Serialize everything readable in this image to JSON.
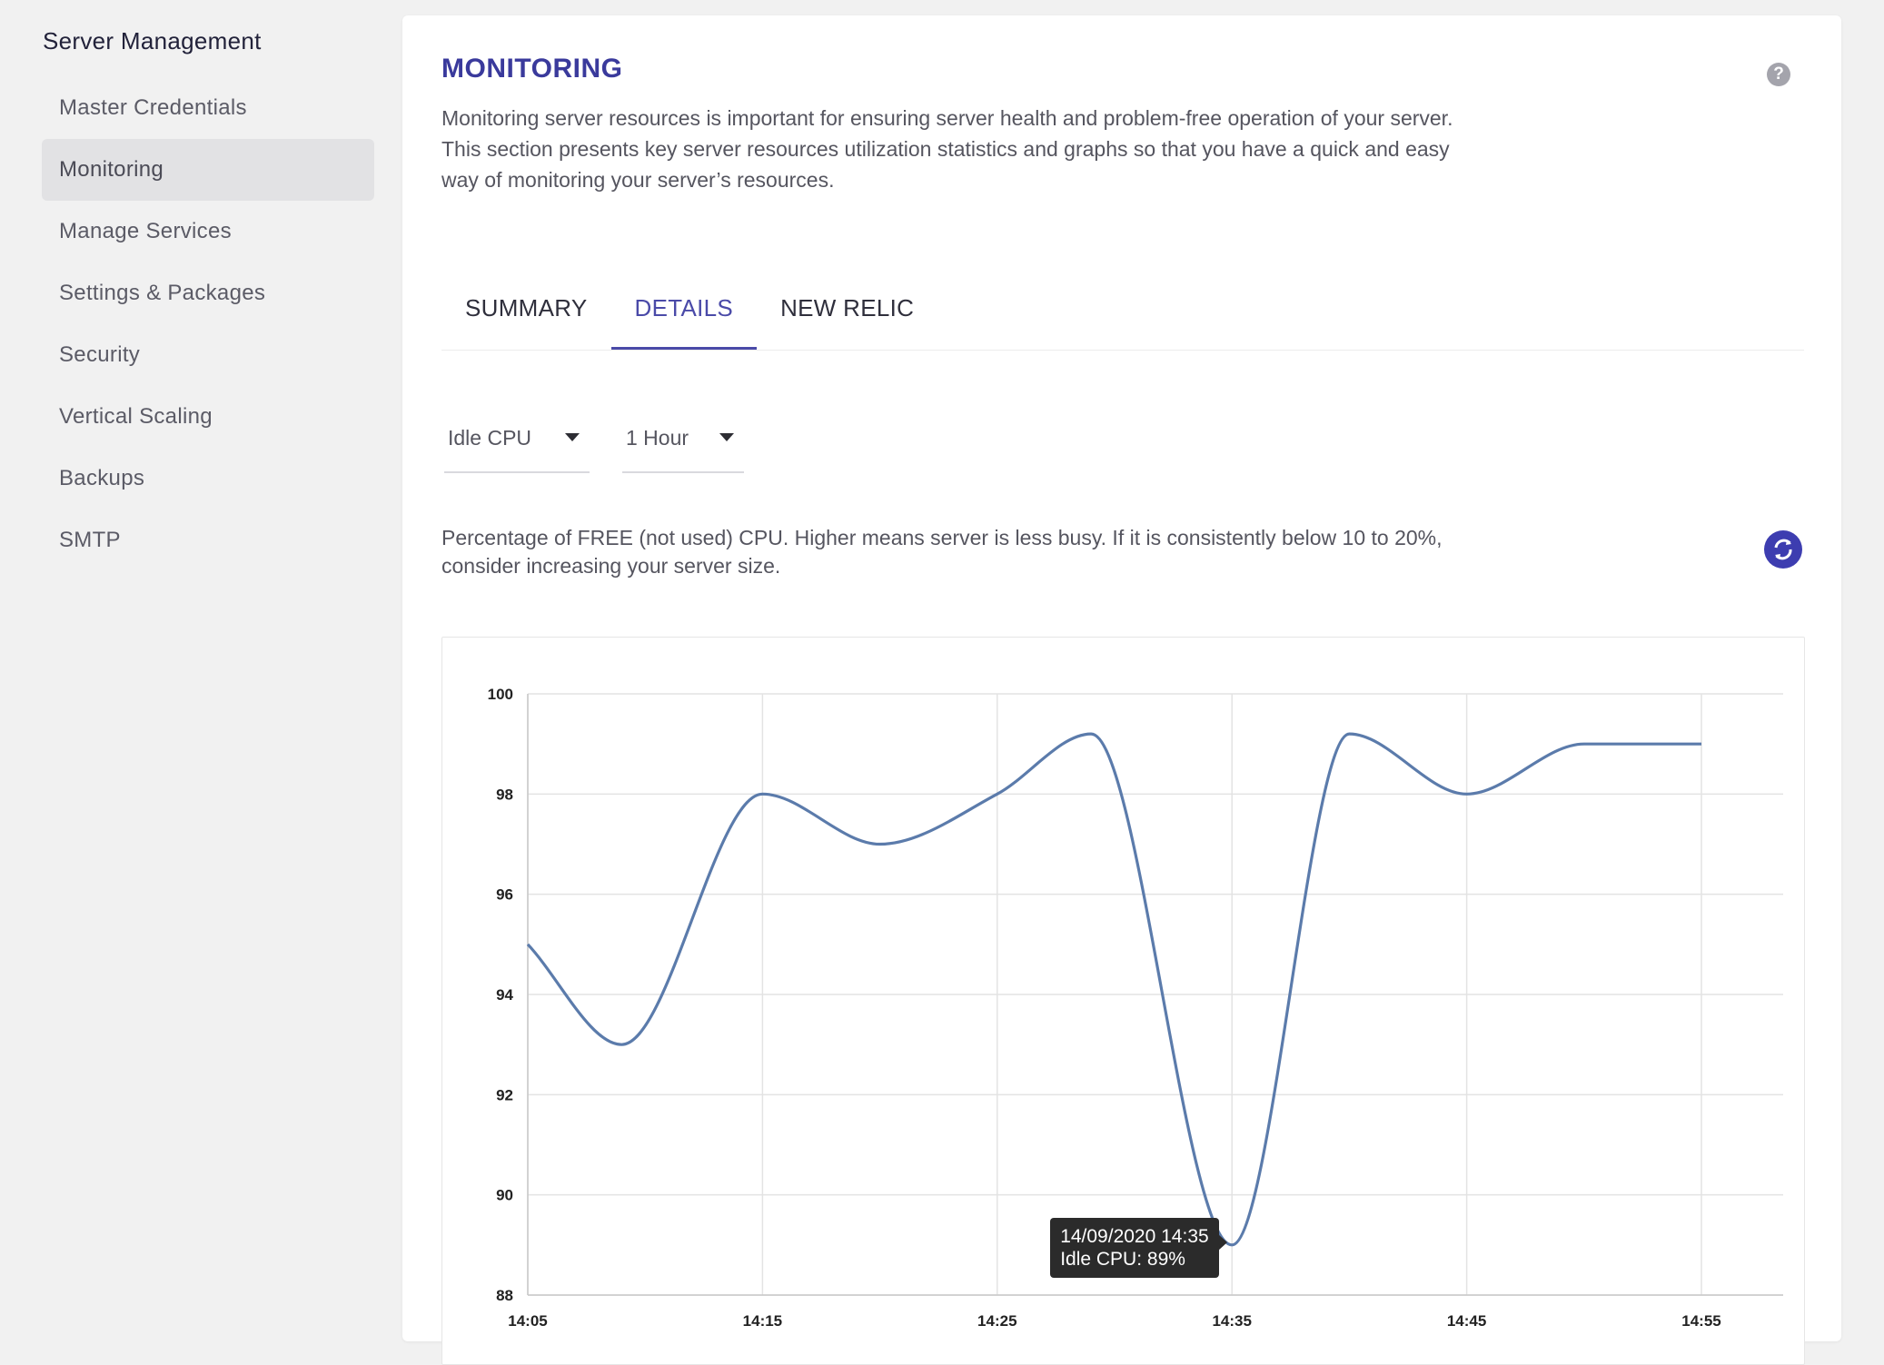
{
  "sidebar": {
    "title": "Server Management",
    "items": [
      {
        "label": "Master Credentials",
        "active": false
      },
      {
        "label": "Monitoring",
        "active": true
      },
      {
        "label": "Manage Services",
        "active": false
      },
      {
        "label": "Settings & Packages",
        "active": false
      },
      {
        "label": "Security",
        "active": false
      },
      {
        "label": "Vertical Scaling",
        "active": false
      },
      {
        "label": "Backups",
        "active": false
      },
      {
        "label": "SMTP",
        "active": false
      }
    ]
  },
  "main": {
    "title": "MONITORING",
    "help_icon": "question-circle-icon",
    "intro": "Monitoring server resources is important for ensuring server health and problem-free operation of your server. This section presents key server resources utilization statistics and graphs so that you have a quick and easy way of monitoring your server’s resources.",
    "tabs": [
      {
        "label": "SUMMARY",
        "active": false
      },
      {
        "label": "DETAILS",
        "active": true
      },
      {
        "label": "NEW RELIC",
        "active": false
      }
    ],
    "metric_select": "Idle CPU",
    "range_select": "1 Hour",
    "metric_description": "Percentage of FREE (not used) CPU. Higher means server is less busy. If it is consistently below 10 to 20%, consider increasing your server size.",
    "refresh_icon": "refresh-icon",
    "tooltip": {
      "line1": "14/09/2020 14:35",
      "line2": "Idle CPU: 89%"
    }
  },
  "colors": {
    "accent": "#3a3a9c",
    "line": "#5b7bab",
    "sidebar_active_bg": "#e2e2e4"
  },
  "chart_data": {
    "type": "line",
    "title": "",
    "xlabel": "",
    "ylabel": "",
    "x_ticks": [
      "14:05",
      "14:15",
      "14:25",
      "14:35",
      "14:45",
      "14:55"
    ],
    "y_ticks": [
      88,
      90,
      92,
      94,
      96,
      98,
      100
    ],
    "ylim": [
      88,
      100
    ],
    "grid": true,
    "legend": "none",
    "series": [
      {
        "x": [
          "14:05",
          "14:09",
          "14:15",
          "14:20",
          "14:25",
          "14:29",
          "14:35",
          "14:40",
          "14:45",
          "14:50",
          "14:55"
        ],
        "values": [
          95,
          93,
          98,
          97,
          98,
          99.2,
          89,
          99.2,
          98,
          99,
          99
        ]
      }
    ]
  }
}
